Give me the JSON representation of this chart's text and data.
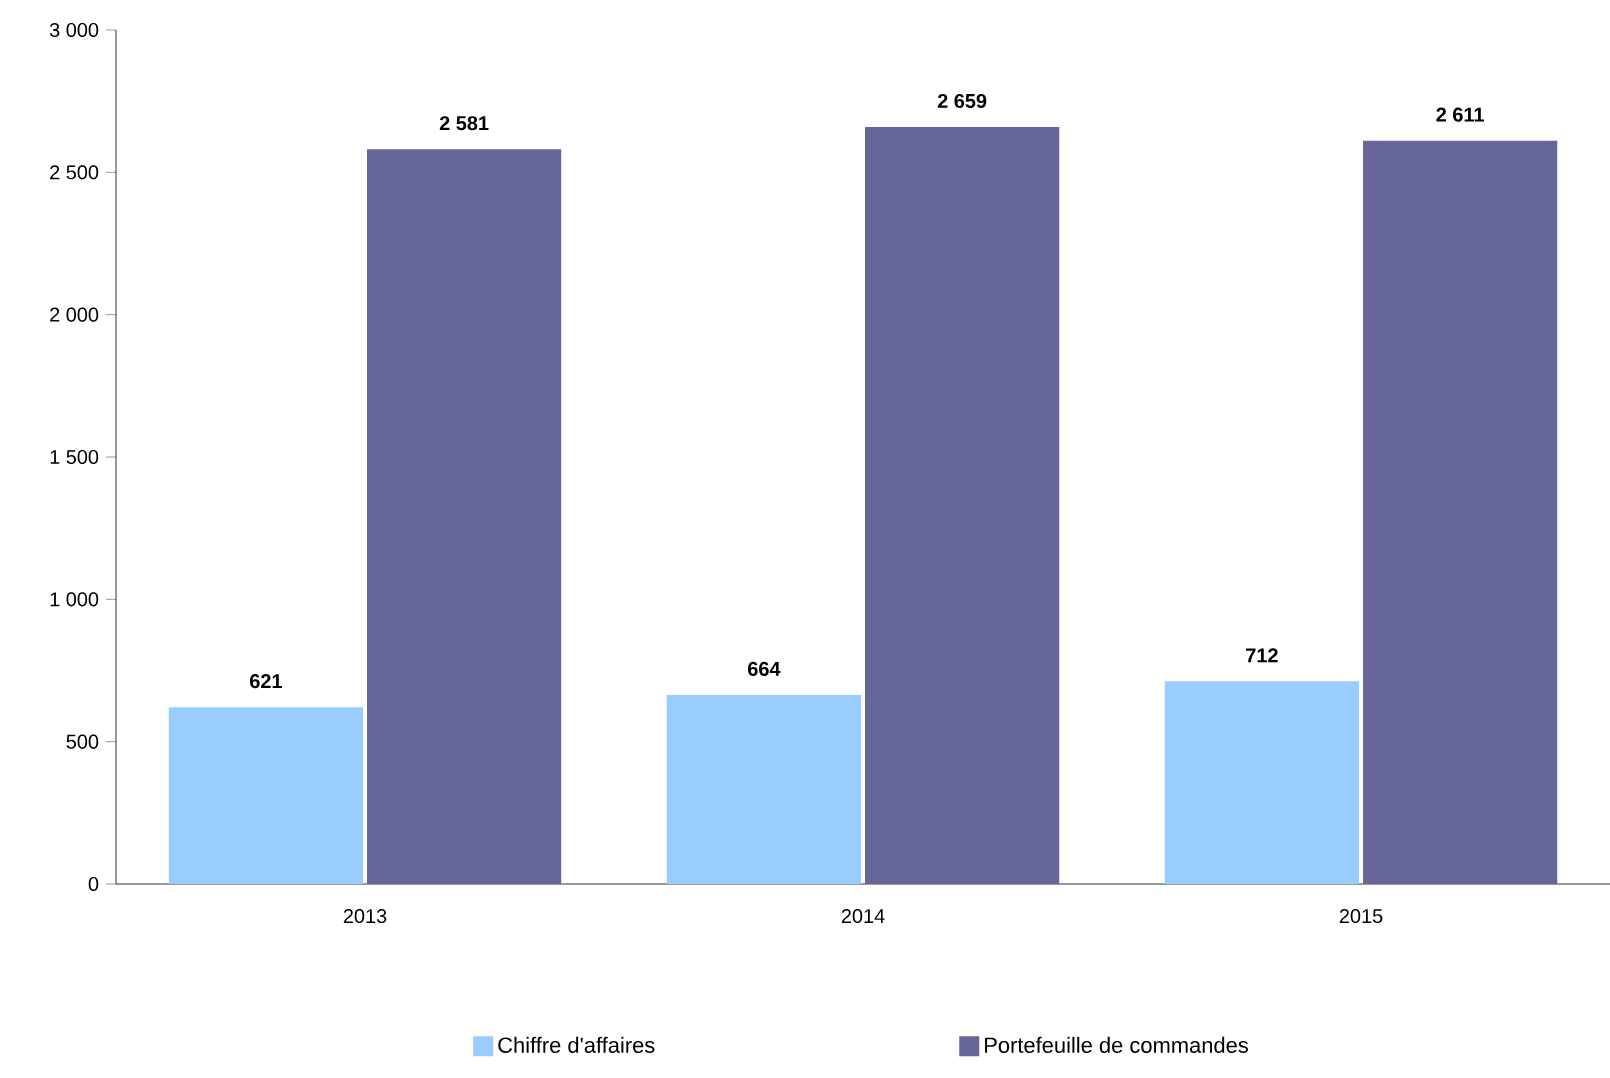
{
  "chart_data": {
    "type": "bar",
    "categories": [
      "2013",
      "2014",
      "2015"
    ],
    "series": [
      {
        "name": "Chiffre d'affaires",
        "color": "#99ccff",
        "values": [
          621,
          664,
          712
        ],
        "value_labels": [
          "621",
          "664",
          "712"
        ]
      },
      {
        "name": "Portefeuille de commandes",
        "color": "#666699",
        "values": [
          2581,
          2659,
          2611
        ],
        "value_labels": [
          "2 581",
          "2 659",
          "2 611"
        ]
      }
    ],
    "ylim": [
      0,
      3000
    ],
    "yticks": [
      0,
      500,
      {
        "value": 1000,
        "label": "1 000"
      },
      {
        "value": 1500,
        "label": "1 500"
      },
      {
        "value": 2000,
        "label": "2 000"
      },
      {
        "value": 2500,
        "label": "2 500"
      },
      {
        "value": 3000,
        "label": "3 000"
      }
    ],
    "legend": "bottom"
  }
}
